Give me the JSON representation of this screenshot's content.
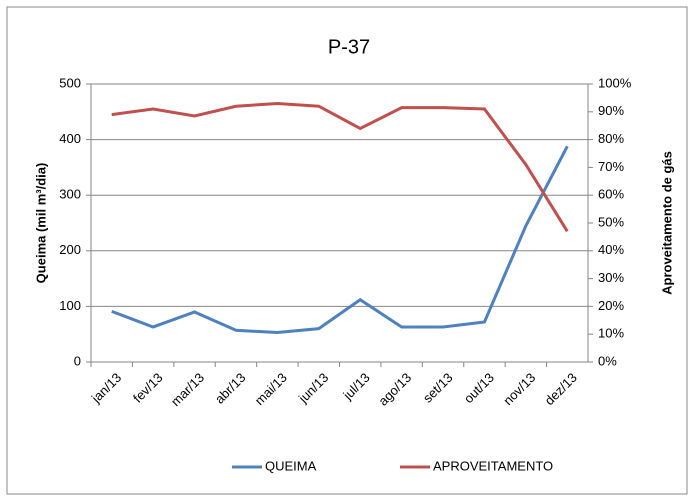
{
  "chart_data": {
    "type": "line",
    "title": "P-37",
    "y_label": "Queima (mil m³/dia)",
    "y2_label": "Aproveitamento de gás",
    "categories": [
      "jan/13",
      "fev/13",
      "mar/13",
      "abr/13",
      "mai/13",
      "jun/13",
      "jul/13",
      "ago/13",
      "set/13",
      "out/13",
      "nov/13",
      "dez/13"
    ],
    "series": [
      {
        "name": "QUEIMA",
        "color": "#4f81bd",
        "values": [
          91,
          63,
          90,
          57,
          53,
          60,
          112,
          63,
          63,
          72,
          245,
          388
        ]
      },
      {
        "name": "APROVEITAMENTO",
        "color": "#c0504d",
        "axis": "y2",
        "values": [
          89,
          91,
          88.5,
          92,
          93,
          92,
          84,
          91.5,
          91.5,
          91,
          71,
          47
        ]
      }
    ],
    "ylim": [
      0,
      500
    ],
    "yticks": [
      0,
      100,
      200,
      300,
      400,
      500
    ],
    "y2lim": [
      0,
      100
    ],
    "y2ticks": [
      {
        "value": 0,
        "label": "0%"
      },
      {
        "value": 10,
        "label": "10%"
      },
      {
        "value": 20,
        "label": "20%"
      },
      {
        "value": 30,
        "label": "30%"
      },
      {
        "value": 40,
        "label": "40%"
      },
      {
        "value": 50,
        "label": "50%"
      },
      {
        "value": 60,
        "label": "60%"
      },
      {
        "value": 70,
        "label": "70%"
      },
      {
        "value": 80,
        "label": "80%"
      },
      {
        "value": 90,
        "label": "90%"
      },
      {
        "value": 100,
        "label": "100%"
      }
    ],
    "grid": true,
    "legend": "bottom"
  }
}
